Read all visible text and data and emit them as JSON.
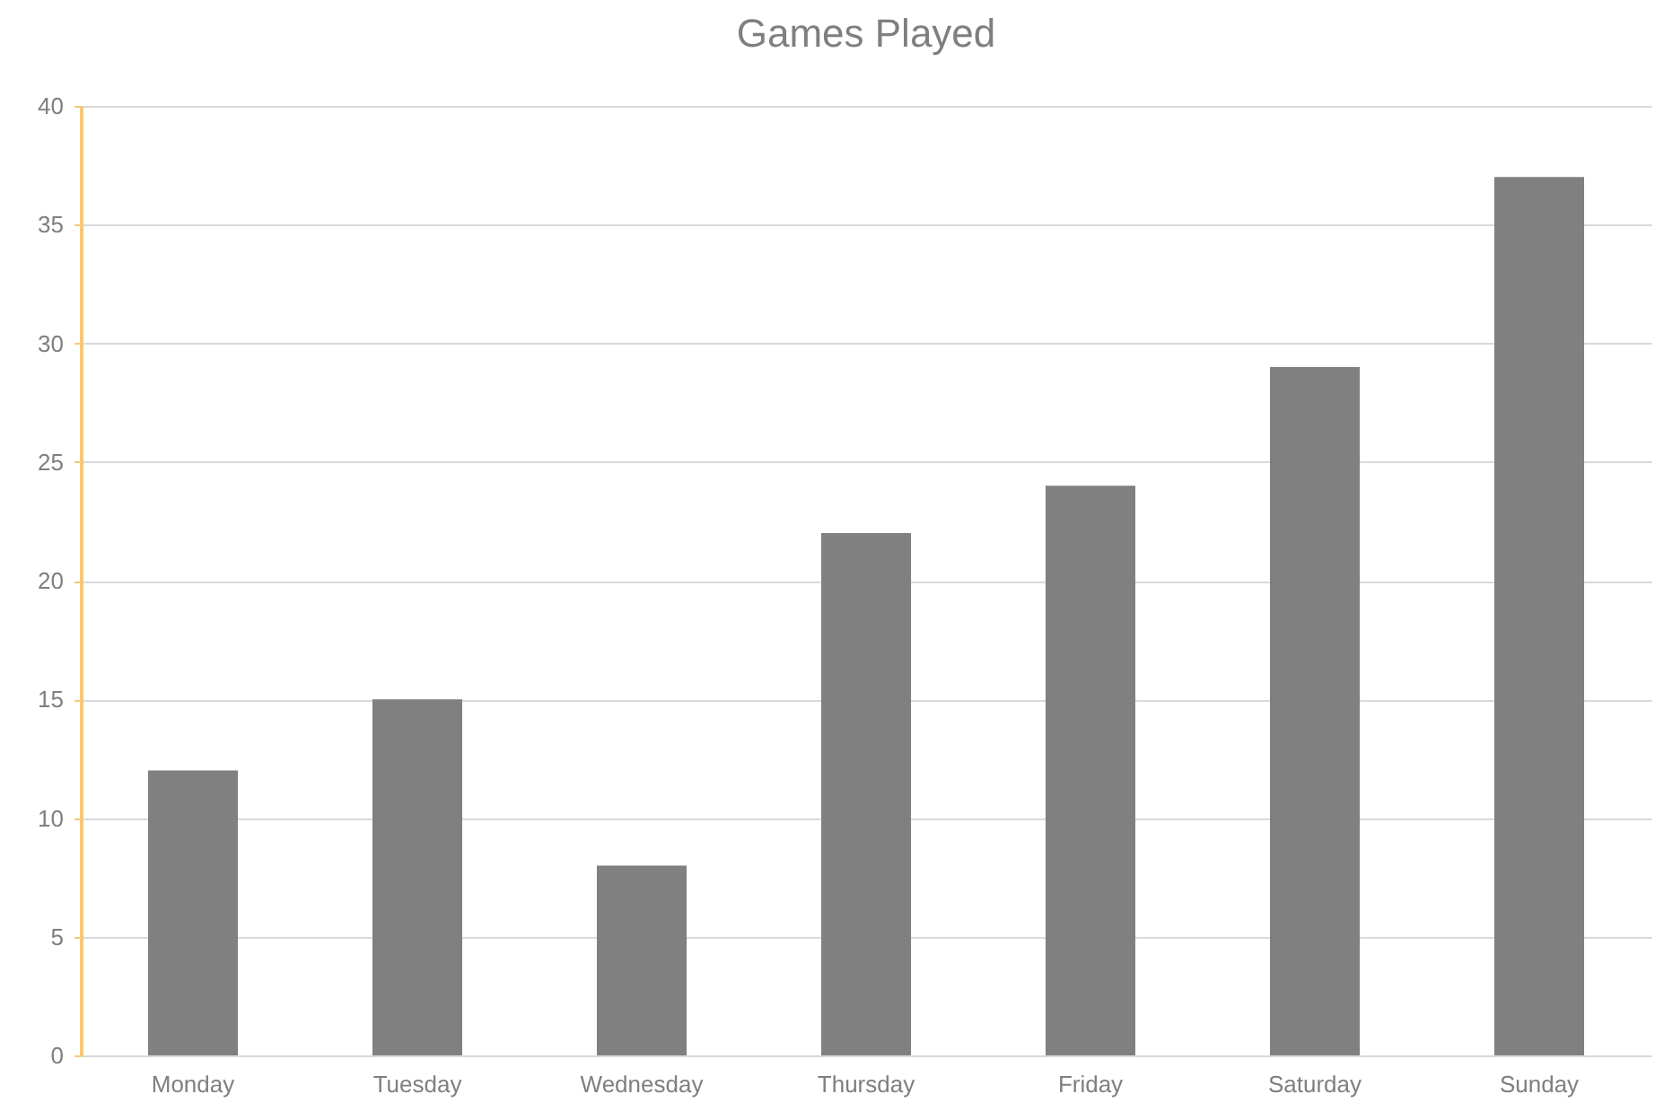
{
  "chart_data": {
    "type": "bar",
    "title": "Games Played",
    "categories": [
      "Monday",
      "Tuesday",
      "Wednesday",
      "Thursday",
      "Friday",
      "Saturday",
      "Sunday"
    ],
    "values": [
      12,
      15,
      8,
      22,
      24,
      29,
      37
    ],
    "color": "#808080",
    "ylim": [
      0,
      40
    ],
    "yticks": [
      0,
      5,
      10,
      15,
      20,
      25,
      30,
      35,
      40
    ],
    "grid": "y"
  }
}
